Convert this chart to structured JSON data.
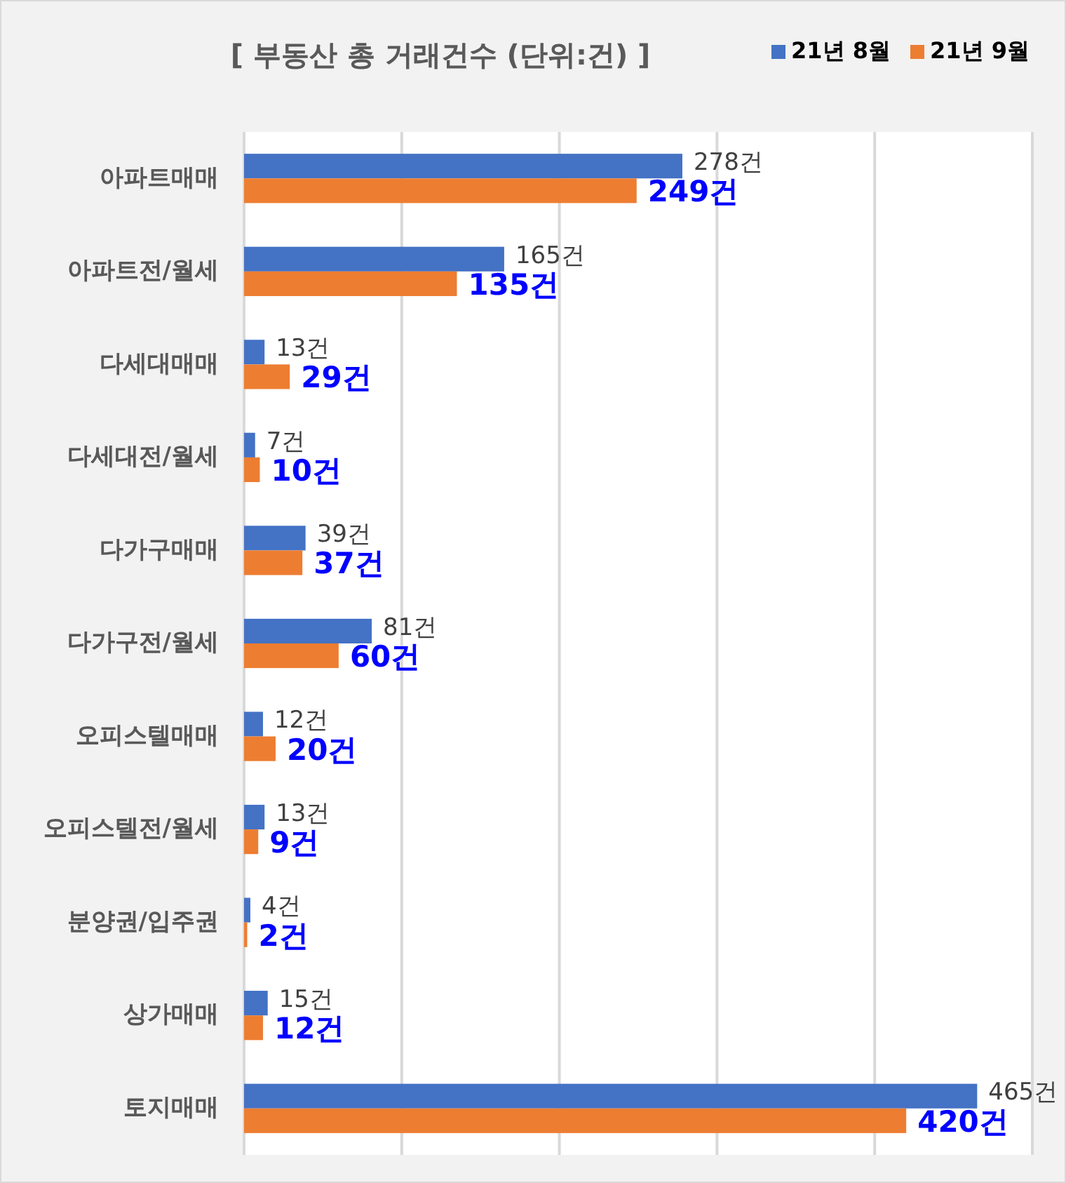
{
  "chart_data": {
    "type": "bar",
    "orientation": "horizontal",
    "title": "[ 부동산 총 거래건수 (단위:건) ]",
    "categories": [
      "아파트매매",
      "아파트전/월세",
      "다세대매매",
      "다세대전/월세",
      "다가구매매",
      "다가구전/월세",
      "오피스텔매매",
      "오피스텔전/월세",
      "분양권/입주권",
      "상가매매",
      "토지매매"
    ],
    "series": [
      {
        "name": "21년 8월",
        "color": "#4472c4",
        "values": [
          278,
          165,
          13,
          7,
          39,
          81,
          12,
          13,
          4,
          15,
          465
        ],
        "value_labels": [
          "278건",
          "165건",
          "13건",
          "7건",
          "39건",
          "81건",
          "12건",
          "13건",
          "4건",
          "15건",
          "465건"
        ]
      },
      {
        "name": "21년 9월",
        "color": "#ed7d31",
        "values": [
          249,
          135,
          29,
          10,
          37,
          60,
          20,
          9,
          2,
          12,
          420
        ],
        "value_labels": [
          "249건",
          "135건",
          "29건",
          "10건",
          "37건",
          "60건",
          "20건",
          "9건",
          "2건",
          "12건",
          "420건"
        ]
      }
    ],
    "xlim": [
      0,
      500
    ],
    "xticks": [
      {
        "value": 0,
        "label": null
      },
      {
        "value": 100,
        "label": null
      },
      {
        "value": 200,
        "label": null
      },
      {
        "value": 300,
        "label": null
      },
      {
        "value": 400,
        "label": null
      },
      {
        "value": 500,
        "label": null
      }
    ],
    "grid": "x",
    "legend": "top right",
    "tick_labels": "y"
  }
}
